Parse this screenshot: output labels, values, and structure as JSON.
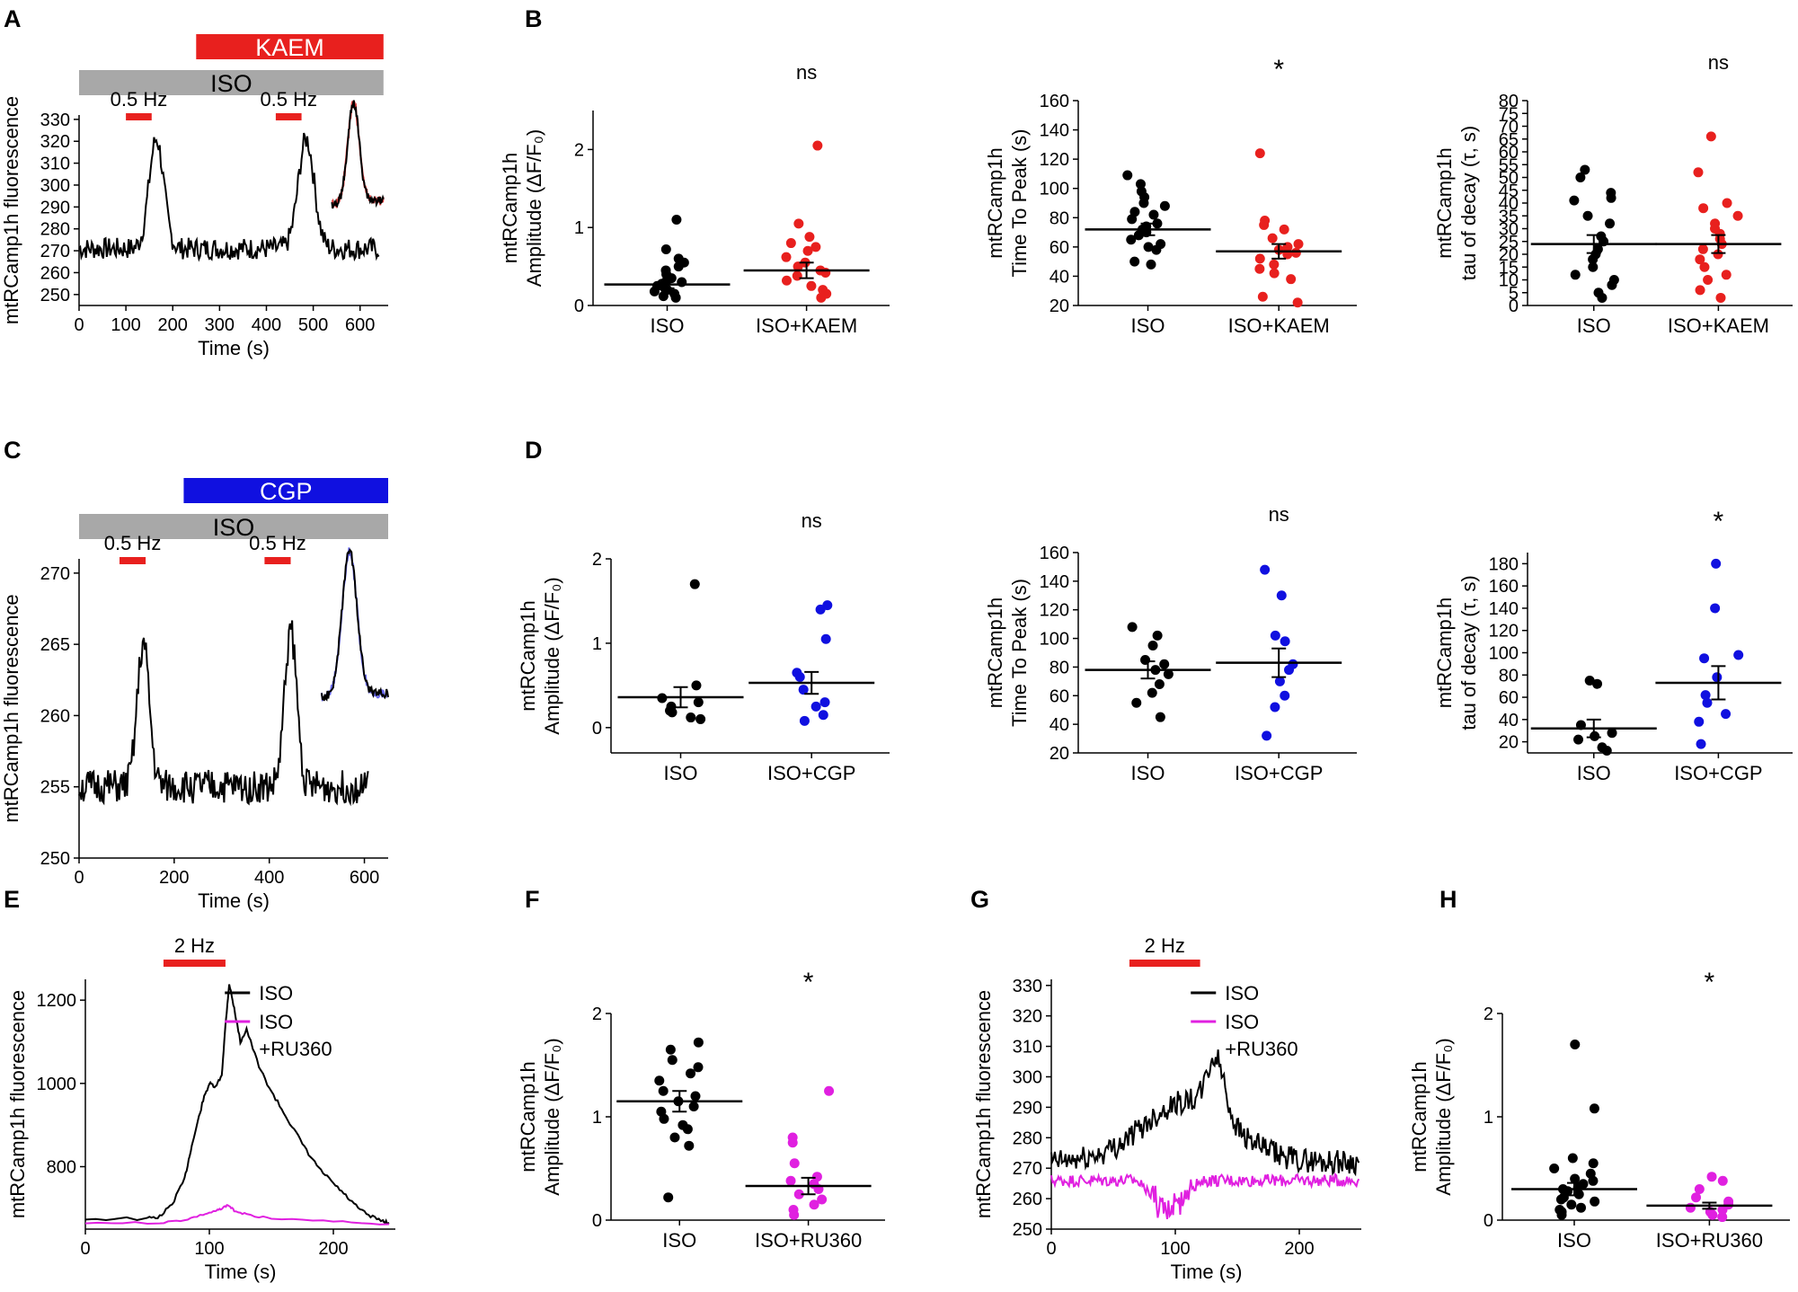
{
  "figure": {
    "panel_letters": [
      "A",
      "B",
      "C",
      "D",
      "E",
      "F",
      "G",
      "H"
    ]
  },
  "colors": {
    "black": "#000000",
    "red": "#e8201e",
    "blue": "#1010e0",
    "magenta": "#e020e0",
    "gray": "#a8a8a8",
    "trace_overlay_red": "#e04040",
    "trace_overlay_blue": "#6a6af0"
  },
  "chart_data": [
    {
      "id": "A",
      "type": "line",
      "title": "",
      "xlabel": "Time (s)",
      "ylabel": "mtRCamp1h fluorescence",
      "xlim": [
        0,
        660
      ],
      "ylim": [
        245,
        332
      ],
      "xticks": [
        0,
        100,
        200,
        300,
        400,
        500,
        600
      ],
      "yticks": [
        250,
        260,
        270,
        280,
        290,
        300,
        310,
        320,
        330
      ],
      "bars": [
        {
          "label": "KAEM",
          "x": [
            250,
            650
          ],
          "color": "#e8201e",
          "text_color": "#ffffff"
        },
        {
          "label": "ISO",
          "x": [
            0,
            650
          ],
          "color": "#a8a8a8",
          "text_color": "#000000"
        }
      ],
      "stims": [
        {
          "label": "0.5 Hz",
          "x": [
            100,
            155
          ]
        },
        {
          "label": "0.5 Hz",
          "x": [
            420,
            475
          ]
        }
      ],
      "baseline": 271,
      "noise": 5,
      "peaks": [
        [
          165,
          50,
          22
        ],
        [
          485,
          50,
          24
        ]
      ],
      "inset": {
        "x": [
          540,
          650
        ],
        "colors": [
          "#000000",
          "#e04040"
        ]
      },
      "series": [
        {
          "name": "trace",
          "x_range": [
            0,
            640
          ],
          "color": "#000000"
        }
      ]
    },
    {
      "id": "B1",
      "type": "scatter",
      "ylabel": [
        "mtRCamp1h",
        "Amplitude (ΔF/F₀)"
      ],
      "categories": [
        "ISO",
        "ISO+KAEM"
      ],
      "ylim": [
        0,
        2.5
      ],
      "yticks": [
        0,
        1,
        2
      ],
      "sig": "ns",
      "colors": [
        "#000000",
        "#e8201e"
      ],
      "series": [
        {
          "name": "ISO",
          "mean": 0.27,
          "sem": 0.05,
          "values": [
            1.1,
            0.72,
            0.6,
            0.55,
            0.5,
            0.45,
            0.4,
            0.35,
            0.32,
            0.3,
            0.28,
            0.25,
            0.22,
            0.2,
            0.18,
            0.15,
            0.12,
            0.1
          ]
        },
        {
          "name": "ISO+KAEM",
          "mean": 0.45,
          "sem": 0.1,
          "values": [
            2.05,
            1.05,
            0.88,
            0.8,
            0.75,
            0.7,
            0.62,
            0.55,
            0.5,
            0.45,
            0.42,
            0.38,
            0.32,
            0.25,
            0.2,
            0.15,
            0.1
          ]
        }
      ]
    },
    {
      "id": "B2",
      "type": "scatter",
      "ylabel": [
        "mtRCamp1h",
        "Time To Peak (s)"
      ],
      "categories": [
        "ISO",
        "ISO+KAEM"
      ],
      "ylim": [
        20,
        160
      ],
      "yticks": [
        20,
        40,
        60,
        80,
        100,
        120,
        140,
        160
      ],
      "sig": "*",
      "colors": [
        "#000000",
        "#e8201e"
      ],
      "series": [
        {
          "name": "ISO",
          "mean": 72,
          "sem": 4,
          "values": [
            109,
            103,
            98,
            94,
            90,
            88,
            84,
            82,
            79,
            76,
            74,
            72,
            70,
            68,
            65,
            62,
            60,
            58,
            50,
            48
          ]
        },
        {
          "name": "ISO+KAEM",
          "mean": 57,
          "sem": 5,
          "values": [
            124,
            78,
            75,
            72,
            66,
            62,
            60,
            58,
            56,
            55,
            52,
            48,
            45,
            42,
            38,
            26,
            22
          ]
        }
      ]
    },
    {
      "id": "B3",
      "type": "scatter",
      "ylabel": [
        "mtRCamp1h",
        "tau of decay (τ, s)"
      ],
      "categories": [
        "ISO",
        "ISO+KAEM"
      ],
      "ylim": [
        0,
        80
      ],
      "yticks": [
        0,
        5,
        10,
        15,
        20,
        25,
        30,
        35,
        40,
        45,
        50,
        55,
        60,
        65,
        70,
        75,
        80
      ],
      "sig": "ns",
      "colors": [
        "#000000",
        "#e8201e"
      ],
      "series": [
        {
          "name": "ISO",
          "mean": 24,
          "sem": 3.5,
          "values": [
            53,
            50,
            44,
            42,
            41,
            35,
            32,
            27,
            25,
            22,
            20,
            18,
            15,
            12,
            10,
            8,
            5,
            3
          ]
        },
        {
          "name": "ISO+KAEM",
          "mean": 24,
          "sem": 3.5,
          "values": [
            66,
            52,
            40,
            38,
            35,
            32,
            30,
            28,
            26,
            24,
            22,
            20,
            18,
            15,
            12,
            10,
            6,
            3
          ]
        }
      ]
    },
    {
      "id": "C",
      "type": "line",
      "title": "",
      "xlabel": "Time (s)",
      "ylabel": "mtRCamp1h fluorescence",
      "xlim": [
        0,
        650
      ],
      "ylim": [
        250,
        271
      ],
      "xticks": [
        0,
        200,
        400,
        600
      ],
      "yticks": [
        250,
        255,
        260,
        265,
        270
      ],
      "bars": [
        {
          "label": "CGP",
          "x": [
            220,
            650
          ],
          "color": "#1010e0",
          "text_color": "#ffffff"
        },
        {
          "label": "ISO",
          "x": [
            0,
            650
          ],
          "color": "#a8a8a8",
          "text_color": "#000000"
        }
      ],
      "stims": [
        {
          "label": "0.5 Hz",
          "x": [
            85,
            140
          ]
        },
        {
          "label": "0.5 Hz",
          "x": [
            390,
            445
          ]
        }
      ],
      "baseline": 255,
      "noise": 1.2,
      "peaks": [
        [
          135,
          10,
          18
        ],
        [
          445,
          11,
          18
        ]
      ],
      "inset": {
        "x": [
          510,
          650
        ],
        "colors": [
          "#000000",
          "#6a6af0"
        ]
      },
      "series": [
        {
          "name": "trace",
          "x_range": [
            0,
            610
          ],
          "color": "#000000"
        }
      ]
    },
    {
      "id": "D1",
      "type": "scatter",
      "ylabel": [
        "mtRCamp1h",
        "Amplitude (ΔF/F₀)"
      ],
      "categories": [
        "ISO",
        "ISO+CGP"
      ],
      "ylim": [
        -0.3,
        2
      ],
      "yticks": [
        0,
        1,
        2
      ],
      "sig": "ns",
      "colors": [
        "#000000",
        "#1010e0"
      ],
      "series": [
        {
          "name": "ISO",
          "mean": 0.36,
          "sem": 0.12,
          "values": [
            1.7,
            0.5,
            0.35,
            0.3,
            0.25,
            0.2,
            0.18,
            0.12,
            0.1
          ]
        },
        {
          "name": "ISO+CGP",
          "mean": 0.53,
          "sem": 0.13,
          "values": [
            1.45,
            1.4,
            1.05,
            0.65,
            0.6,
            0.45,
            0.3,
            0.25,
            0.15,
            0.08
          ]
        }
      ]
    },
    {
      "id": "D2",
      "type": "scatter",
      "ylabel": [
        "mtRCamp1h",
        "Time To Peak (s)"
      ],
      "categories": [
        "ISO",
        "ISO+CGP"
      ],
      "ylim": [
        20,
        160
      ],
      "yticks": [
        20,
        40,
        60,
        80,
        100,
        120,
        140,
        160
      ],
      "sig": "ns",
      "colors": [
        "#000000",
        "#1010e0"
      ],
      "series": [
        {
          "name": "ISO",
          "mean": 78,
          "sem": 6,
          "values": [
            108,
            102,
            95,
            85,
            82,
            78,
            75,
            68,
            62,
            55,
            45
          ]
        },
        {
          "name": "ISO+CGP",
          "mean": 83,
          "sem": 10,
          "values": [
            148,
            130,
            102,
            98,
            82,
            78,
            70,
            60,
            52,
            32
          ]
        }
      ]
    },
    {
      "id": "D3",
      "type": "scatter",
      "ylabel": [
        "mtRCamp1h",
        "tau of decay (τ, s)"
      ],
      "categories": [
        "ISO",
        "ISO+CGP"
      ],
      "ylim": [
        10,
        190
      ],
      "yticks": [
        20,
        40,
        60,
        80,
        100,
        120,
        140,
        160,
        180
      ],
      "sig": "*",
      "colors": [
        "#000000",
        "#1010e0"
      ],
      "series": [
        {
          "name": "ISO",
          "mean": 32,
          "sem": 8,
          "values": [
            75,
            72,
            35,
            28,
            25,
            22,
            15,
            12
          ]
        },
        {
          "name": "ISO+CGP",
          "mean": 73,
          "sem": 15,
          "values": [
            180,
            140,
            98,
            95,
            78,
            62,
            55,
            45,
            38,
            18
          ]
        }
      ]
    },
    {
      "id": "E",
      "type": "line",
      "xlabel": "Time (s)",
      "ylabel": "mtRCamp1h fluorescence",
      "xlim": [
        0,
        250
      ],
      "ylim": [
        650,
        1250
      ],
      "xticks": [
        0,
        100,
        200
      ],
      "yticks": [
        800,
        1000,
        1200
      ],
      "stims": [
        {
          "label": "2 Hz",
          "x": [
            63,
            113
          ]
        }
      ],
      "legend": [
        {
          "label": "ISO",
          "color": "#000000"
        },
        {
          "label": "ISO",
          "label2": "+RU360",
          "color": "#e020e0"
        }
      ],
      "series": [
        {
          "name": "ISO",
          "color": "#000000",
          "x": [
            0,
            50,
            60,
            70,
            80,
            85,
            90,
            95,
            100,
            105,
            110,
            113,
            116,
            120,
            125,
            130,
            140,
            150,
            160,
            170,
            180,
            190,
            200,
            210,
            220,
            230,
            240,
            245
          ],
          "y": [
            675,
            675,
            680,
            710,
            770,
            840,
            900,
            960,
            1000,
            990,
            1020,
            1140,
            1240,
            1180,
            1100,
            1130,
            1040,
            980,
            930,
            880,
            830,
            790,
            760,
            730,
            700,
            680,
            670,
            665
          ]
        },
        {
          "name": "ISO+RU360",
          "color": "#e020e0",
          "x": [
            0,
            60,
            80,
            95,
            105,
            110,
            115,
            120,
            130,
            150,
            200,
            245
          ],
          "y": [
            665,
            665,
            672,
            685,
            693,
            700,
            708,
            695,
            685,
            675,
            668,
            662
          ]
        }
      ]
    },
    {
      "id": "F",
      "type": "scatter",
      "ylabel": [
        "mtRCamp1h",
        "Amplitude (ΔF/F₀)"
      ],
      "categories": [
        "ISO",
        "ISO+RU360"
      ],
      "ylim": [
        0,
        2
      ],
      "yticks": [
        0,
        1,
        2
      ],
      "sig": "*",
      "colors": [
        "#000000",
        "#e020e0"
      ],
      "series": [
        {
          "name": "ISO",
          "mean": 1.15,
          "sem": 0.1,
          "values": [
            1.72,
            1.65,
            1.55,
            1.48,
            1.42,
            1.35,
            1.25,
            1.2,
            1.15,
            1.1,
            1.05,
            0.98,
            0.92,
            0.88,
            0.8,
            0.72,
            0.22
          ]
        },
        {
          "name": "ISO+RU360",
          "mean": 0.33,
          "sem": 0.08,
          "values": [
            1.25,
            0.8,
            0.75,
            0.55,
            0.42,
            0.38,
            0.35,
            0.3,
            0.25,
            0.2,
            0.15,
            0.1,
            0.05
          ]
        }
      ]
    },
    {
      "id": "G",
      "type": "line",
      "xlabel": "Time (s)",
      "ylabel": "mtRCamp1h fluorescence",
      "xlim": [
        0,
        250
      ],
      "ylim": [
        250,
        332
      ],
      "xticks": [
        0,
        100,
        200
      ],
      "yticks": [
        250,
        260,
        270,
        280,
        290,
        300,
        310,
        320,
        330
      ],
      "stims": [
        {
          "label": "2 Hz",
          "x": [
            63,
            120
          ]
        }
      ],
      "legend": [
        {
          "label": "ISO",
          "color": "#000000"
        },
        {
          "label": "ISO",
          "label2": "+RU360",
          "color": "#e020e0"
        }
      ],
      "series": [
        {
          "name": "ISO",
          "color": "#000000",
          "baseline": 272,
          "noise": 4,
          "peaks": [
            [
              110,
              20,
              50
            ],
            [
              133,
              18,
              10
            ]
          ],
          "x_range": [
            0,
            248
          ]
        },
        {
          "name": "ISO+RU360",
          "color": "#e020e0",
          "baseline": 266,
          "noise": 2,
          "dips": [
            [
              95,
              12,
              28
            ]
          ],
          "x_range": [
            0,
            248
          ]
        }
      ]
    },
    {
      "id": "H",
      "type": "scatter",
      "ylabel": [
        "mtRCamp1h",
        "Amplitude (ΔF/F₀)"
      ],
      "categories": [
        "ISO",
        "ISO+RU360"
      ],
      "ylim": [
        0,
        2
      ],
      "yticks": [
        0,
        1,
        2
      ],
      "sig": "*",
      "colors": [
        "#000000",
        "#e020e0"
      ],
      "series": [
        {
          "name": "ISO",
          "mean": 0.3,
          "sem": 0.06,
          "values": [
            1.7,
            1.08,
            0.6,
            0.55,
            0.5,
            0.45,
            0.4,
            0.38,
            0.35,
            0.32,
            0.3,
            0.28,
            0.25,
            0.22,
            0.2,
            0.18,
            0.15,
            0.12,
            0.1,
            0.08,
            0.05
          ]
        },
        {
          "name": "ISO+RU360",
          "mean": 0.14,
          "sem": 0.03,
          "values": [
            0.42,
            0.38,
            0.3,
            0.22,
            0.18,
            0.15,
            0.12,
            0.1,
            0.08,
            0.05,
            0.03
          ]
        }
      ]
    }
  ]
}
